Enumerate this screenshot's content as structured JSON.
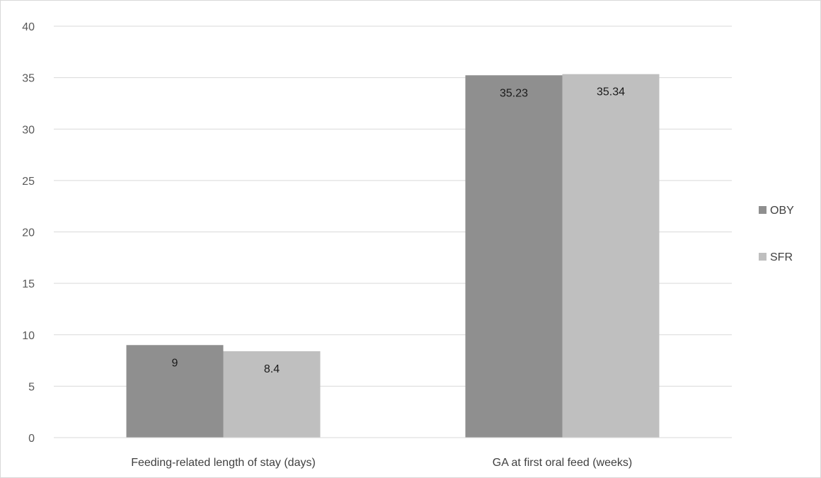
{
  "chart_data": {
    "type": "bar",
    "title": "",
    "xlabel": "",
    "ylabel": "",
    "categories": [
      "Feeding-related length of stay (days)",
      "GA at first oral feed (weeks)"
    ],
    "series": [
      {
        "name": "OBY",
        "values": [
          9,
          35.23
        ],
        "labels": [
          "9",
          "35.23"
        ],
        "color": "#8f8f8f"
      },
      {
        "name": "SFR",
        "values": [
          8.4,
          35.34
        ],
        "labels": [
          "8.4",
          "35.34"
        ],
        "color": "#bfbfbf"
      }
    ],
    "ylim": [
      0,
      40
    ],
    "yticks": [
      0,
      5,
      10,
      15,
      20,
      25,
      30,
      35,
      40
    ],
    "grid": true,
    "gridline_color": "#d9d9d9",
    "legend_position": "right"
  }
}
